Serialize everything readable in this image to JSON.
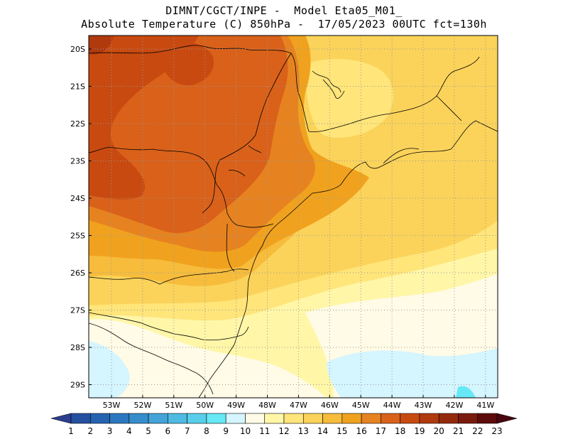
{
  "header": {
    "line1": "DIMNT/CGCT/INPE -  Model Eta05_M01_",
    "line2": "Absolute Temperature (C) 850hPa -  17/05/2023 00UTC fct=130h"
  },
  "map": {
    "lat_labels": [
      "20S",
      "21S",
      "22S",
      "23S",
      "24S",
      "25S",
      "26S",
      "27S",
      "28S",
      "29S"
    ],
    "lon_labels": [
      "53W",
      "52W",
      "51W",
      "50W",
      "49W",
      "48W",
      "47W",
      "46W",
      "45W",
      "44W",
      "43W",
      "42W",
      "41W"
    ]
  },
  "colorbar": {
    "labels": [
      "1",
      "2",
      "3",
      "4",
      "5",
      "6",
      "7",
      "8",
      "9",
      "10",
      "11",
      "12",
      "13",
      "14",
      "15",
      "16",
      "17",
      "18",
      "19",
      "20",
      "21",
      "22",
      "23"
    ],
    "colors": [
      "#2a3f8f",
      "#25509f",
      "#2563b1",
      "#2b78c0",
      "#358dcb",
      "#43a4d8",
      "#4fbbe3",
      "#58cfea",
      "#66e8f5",
      "#d5f5ff",
      "#fffbe6",
      "#fff6a8",
      "#ffe57a",
      "#fbd35a",
      "#f7bc3c",
      "#f0a21e",
      "#e68320",
      "#d9611a",
      "#c84a10",
      "#b03a0e",
      "#942a0c",
      "#7a1a0d",
      "#5e0b0b",
      "#4a0510"
    ]
  }
}
